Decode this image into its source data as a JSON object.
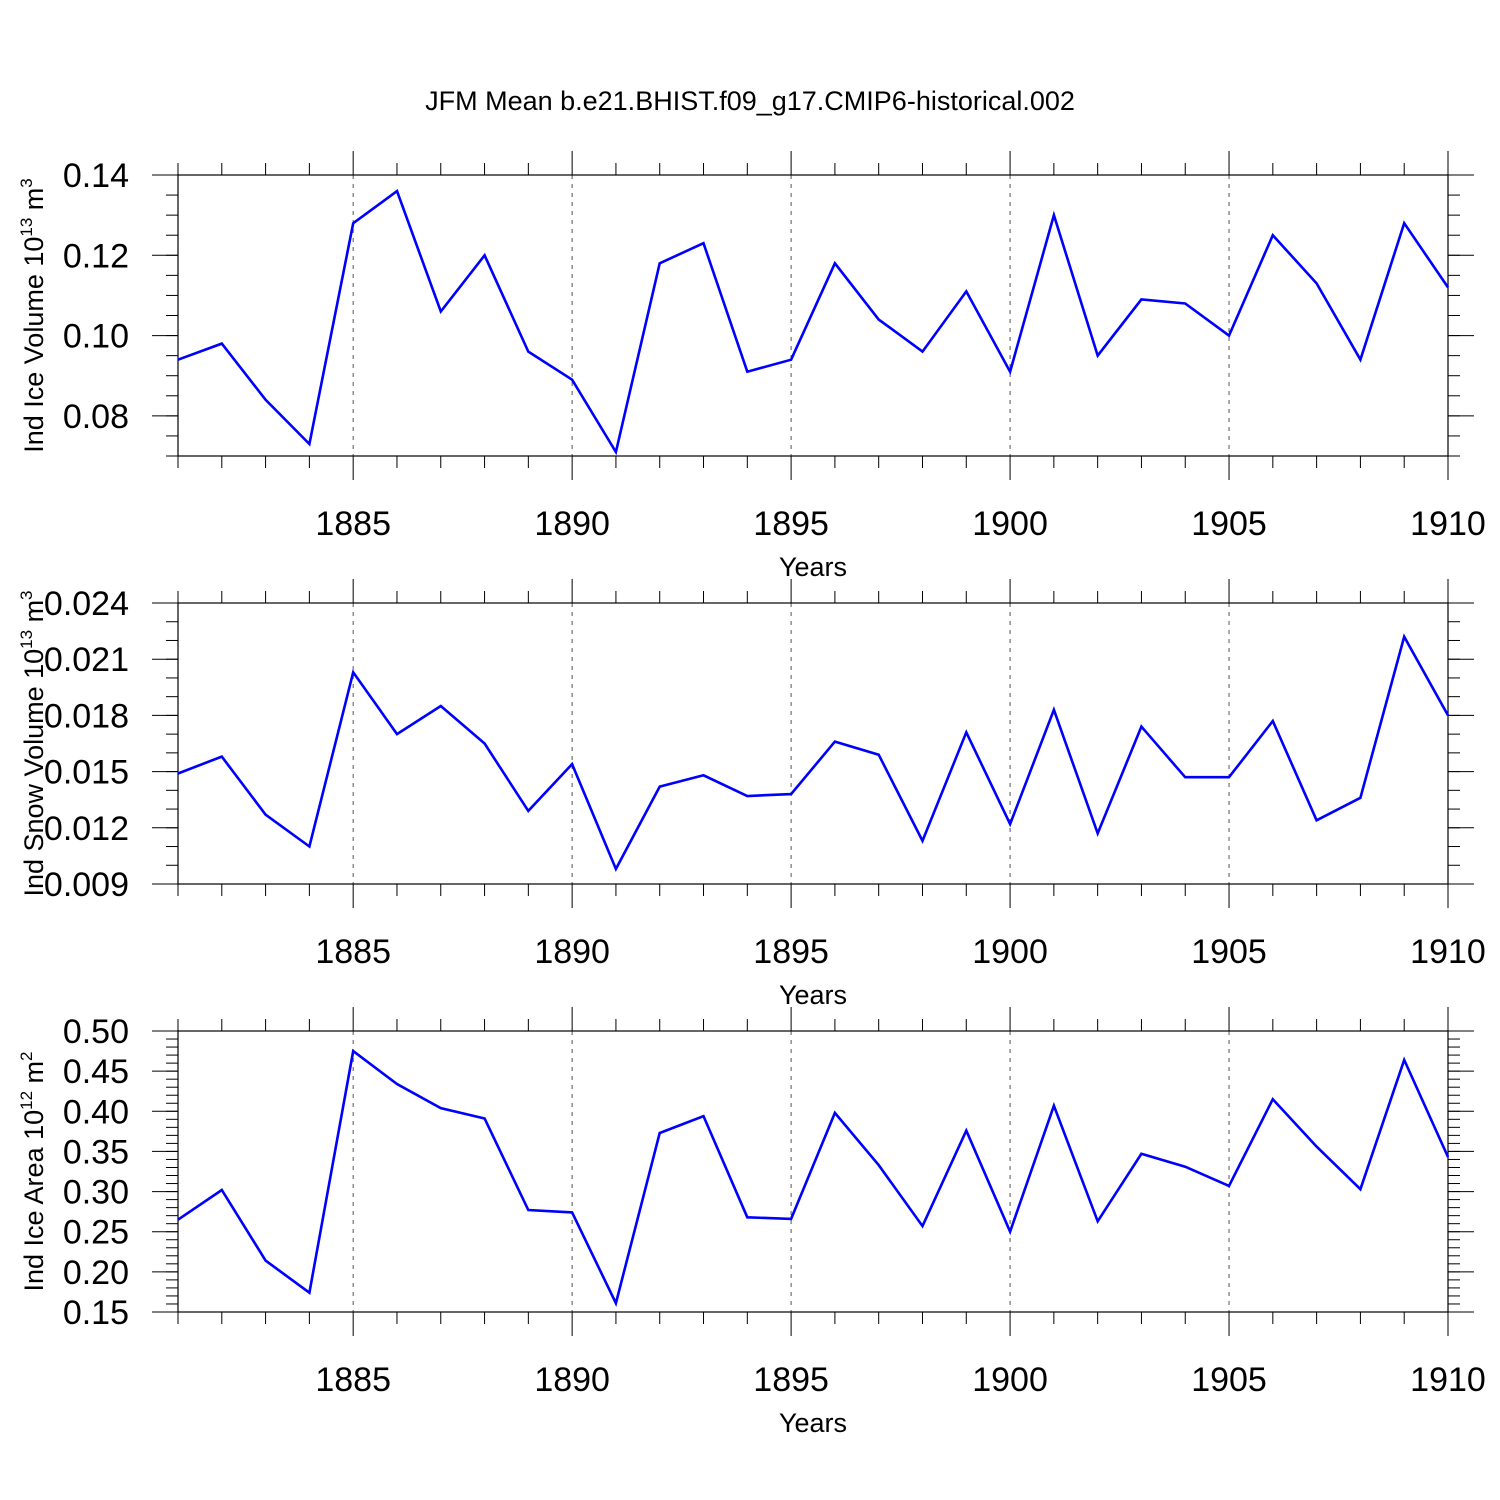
{
  "title": "JFM Mean b.e21.BHIST.f09_g17.CMIP6-historical.002",
  "chart_data": [
    {
      "type": "line",
      "xlabel": "Years",
      "ylabel_base": "Ind Ice Volume 10",
      "ylabel_exp": "13",
      "ylabel_unit": "m",
      "ylabel_unit_exp": "3",
      "xlim": [
        1881,
        1910
      ],
      "ylim": [
        0.07,
        0.14
      ],
      "yticks": [
        0.08,
        0.1,
        0.12,
        0.14
      ],
      "yticklabels": [
        "0.08",
        "0.10",
        "0.12",
        "0.14"
      ],
      "yminor_step": 0.005,
      "xticks": [
        1885,
        1890,
        1895,
        1900,
        1905,
        1910
      ],
      "xticklabels": [
        "1885",
        "1890",
        "1895",
        "1900",
        "1905",
        "1910"
      ],
      "color": "#0000ff",
      "grid": "vertical dashed at major x ticks",
      "x": [
        1881,
        1882,
        1883,
        1884,
        1885,
        1886,
        1887,
        1888,
        1889,
        1890,
        1891,
        1892,
        1893,
        1894,
        1895,
        1896,
        1897,
        1898,
        1899,
        1900,
        1901,
        1902,
        1903,
        1904,
        1905,
        1906,
        1907,
        1908,
        1909,
        1910
      ],
      "y": [
        0.094,
        0.098,
        0.084,
        0.073,
        0.128,
        0.136,
        0.106,
        0.12,
        0.096,
        0.089,
        0.071,
        0.118,
        0.123,
        0.091,
        0.094,
        0.118,
        0.104,
        0.096,
        0.111,
        0.091,
        0.13,
        0.095,
        0.109,
        0.108,
        0.1,
        0.125,
        0.113,
        0.094,
        0.128,
        0.112
      ]
    },
    {
      "type": "line",
      "xlabel": "Years",
      "ylabel_base": "Ind Snow Volume 10",
      "ylabel_exp": "13",
      "ylabel_unit": "m",
      "ylabel_unit_exp": "3",
      "xlim": [
        1881,
        1910
      ],
      "ylim": [
        0.009,
        0.024
      ],
      "yticks": [
        0.009,
        0.012,
        0.015,
        0.018,
        0.021,
        0.024
      ],
      "yticklabels": [
        "0.009",
        "0.012",
        "0.015",
        "0.018",
        "0.021",
        "0.024"
      ],
      "yminor_step": 0.001,
      "xticks": [
        1885,
        1890,
        1895,
        1900,
        1905,
        1910
      ],
      "xticklabels": [
        "1885",
        "1890",
        "1895",
        "1900",
        "1905",
        "1910"
      ],
      "color": "#0000ff",
      "grid": "vertical dashed at major x ticks",
      "x": [
        1881,
        1882,
        1883,
        1884,
        1885,
        1886,
        1887,
        1888,
        1889,
        1890,
        1891,
        1892,
        1893,
        1894,
        1895,
        1896,
        1897,
        1898,
        1899,
        1900,
        1901,
        1902,
        1903,
        1904,
        1905,
        1906,
        1907,
        1908,
        1909,
        1910
      ],
      "y": [
        0.0149,
        0.0158,
        0.0127,
        0.011,
        0.0203,
        0.017,
        0.0185,
        0.0165,
        0.0129,
        0.0154,
        0.0098,
        0.0142,
        0.0148,
        0.0137,
        0.0138,
        0.0166,
        0.0159,
        0.0113,
        0.0171,
        0.0122,
        0.0183,
        0.0117,
        0.0174,
        0.0147,
        0.0147,
        0.0177,
        0.0124,
        0.0136,
        0.0222,
        0.018
      ]
    },
    {
      "type": "line",
      "xlabel": "Years",
      "ylabel_base": "Ind Ice Area 10",
      "ylabel_exp": "12",
      "ylabel_unit": "m",
      "ylabel_unit_exp": "2",
      "xlim": [
        1881,
        1910
      ],
      "ylim": [
        0.15,
        0.5
      ],
      "yticks": [
        0.15,
        0.2,
        0.25,
        0.3,
        0.35,
        0.4,
        0.45,
        0.5
      ],
      "yticklabels": [
        "0.15",
        "0.20",
        "0.25",
        "0.30",
        "0.35",
        "0.40",
        "0.45",
        "0.50"
      ],
      "yminor_step": 0.01,
      "xticks": [
        1885,
        1890,
        1895,
        1900,
        1905,
        1910
      ],
      "xticklabels": [
        "1885",
        "1890",
        "1895",
        "1900",
        "1905",
        "1910"
      ],
      "color": "#0000ff",
      "grid": "vertical dashed at major x ticks",
      "x": [
        1881,
        1882,
        1883,
        1884,
        1885,
        1886,
        1887,
        1888,
        1889,
        1890,
        1891,
        1892,
        1893,
        1894,
        1895,
        1896,
        1897,
        1898,
        1899,
        1900,
        1901,
        1902,
        1903,
        1904,
        1905,
        1906,
        1907,
        1908,
        1909,
        1910
      ],
      "y": [
        0.265,
        0.302,
        0.214,
        0.174,
        0.475,
        0.434,
        0.404,
        0.391,
        0.277,
        0.274,
        0.161,
        0.373,
        0.394,
        0.268,
        0.266,
        0.398,
        0.333,
        0.257,
        0.376,
        0.25,
        0.407,
        0.263,
        0.347,
        0.331,
        0.307,
        0.415,
        0.356,
        0.303,
        0.464,
        0.343
      ]
    }
  ]
}
